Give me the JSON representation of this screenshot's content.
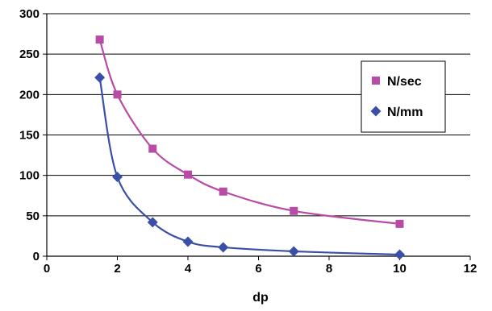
{
  "chart_data": {
    "type": "scatter",
    "title": "",
    "xlabel": "dp",
    "ylabel": "",
    "xlim": [
      0,
      12
    ],
    "ylim": [
      0,
      300
    ],
    "x_ticks": [
      0,
      2,
      4,
      6,
      8,
      10,
      12
    ],
    "y_ticks": [
      0,
      50,
      100,
      150,
      200,
      250,
      300
    ],
    "x_tick_labels": [
      "0",
      "2",
      "4",
      "6",
      "8",
      "10",
      "12"
    ],
    "y_tick_labels": [
      "0",
      "50",
      "100",
      "150",
      "200",
      "250",
      "300"
    ],
    "grid": "horizontal",
    "legend_position": "right",
    "smooth_lines": true,
    "series": [
      {
        "name": "N/sec",
        "marker": "square",
        "color": "#B84BA6",
        "points": [
          [
            1.5,
            268
          ],
          [
            2,
            200
          ],
          [
            3,
            133
          ],
          [
            4,
            101
          ],
          [
            5,
            80
          ],
          [
            7,
            56
          ],
          [
            10,
            40
          ]
        ]
      },
      {
        "name": "N/mm",
        "marker": "diamond",
        "color": "#3A4FA8",
        "points": [
          [
            1.5,
            221
          ],
          [
            2,
            98
          ],
          [
            3,
            42
          ],
          [
            4,
            18
          ],
          [
            5,
            11
          ],
          [
            7,
            6
          ],
          [
            10,
            2
          ]
        ]
      }
    ]
  }
}
